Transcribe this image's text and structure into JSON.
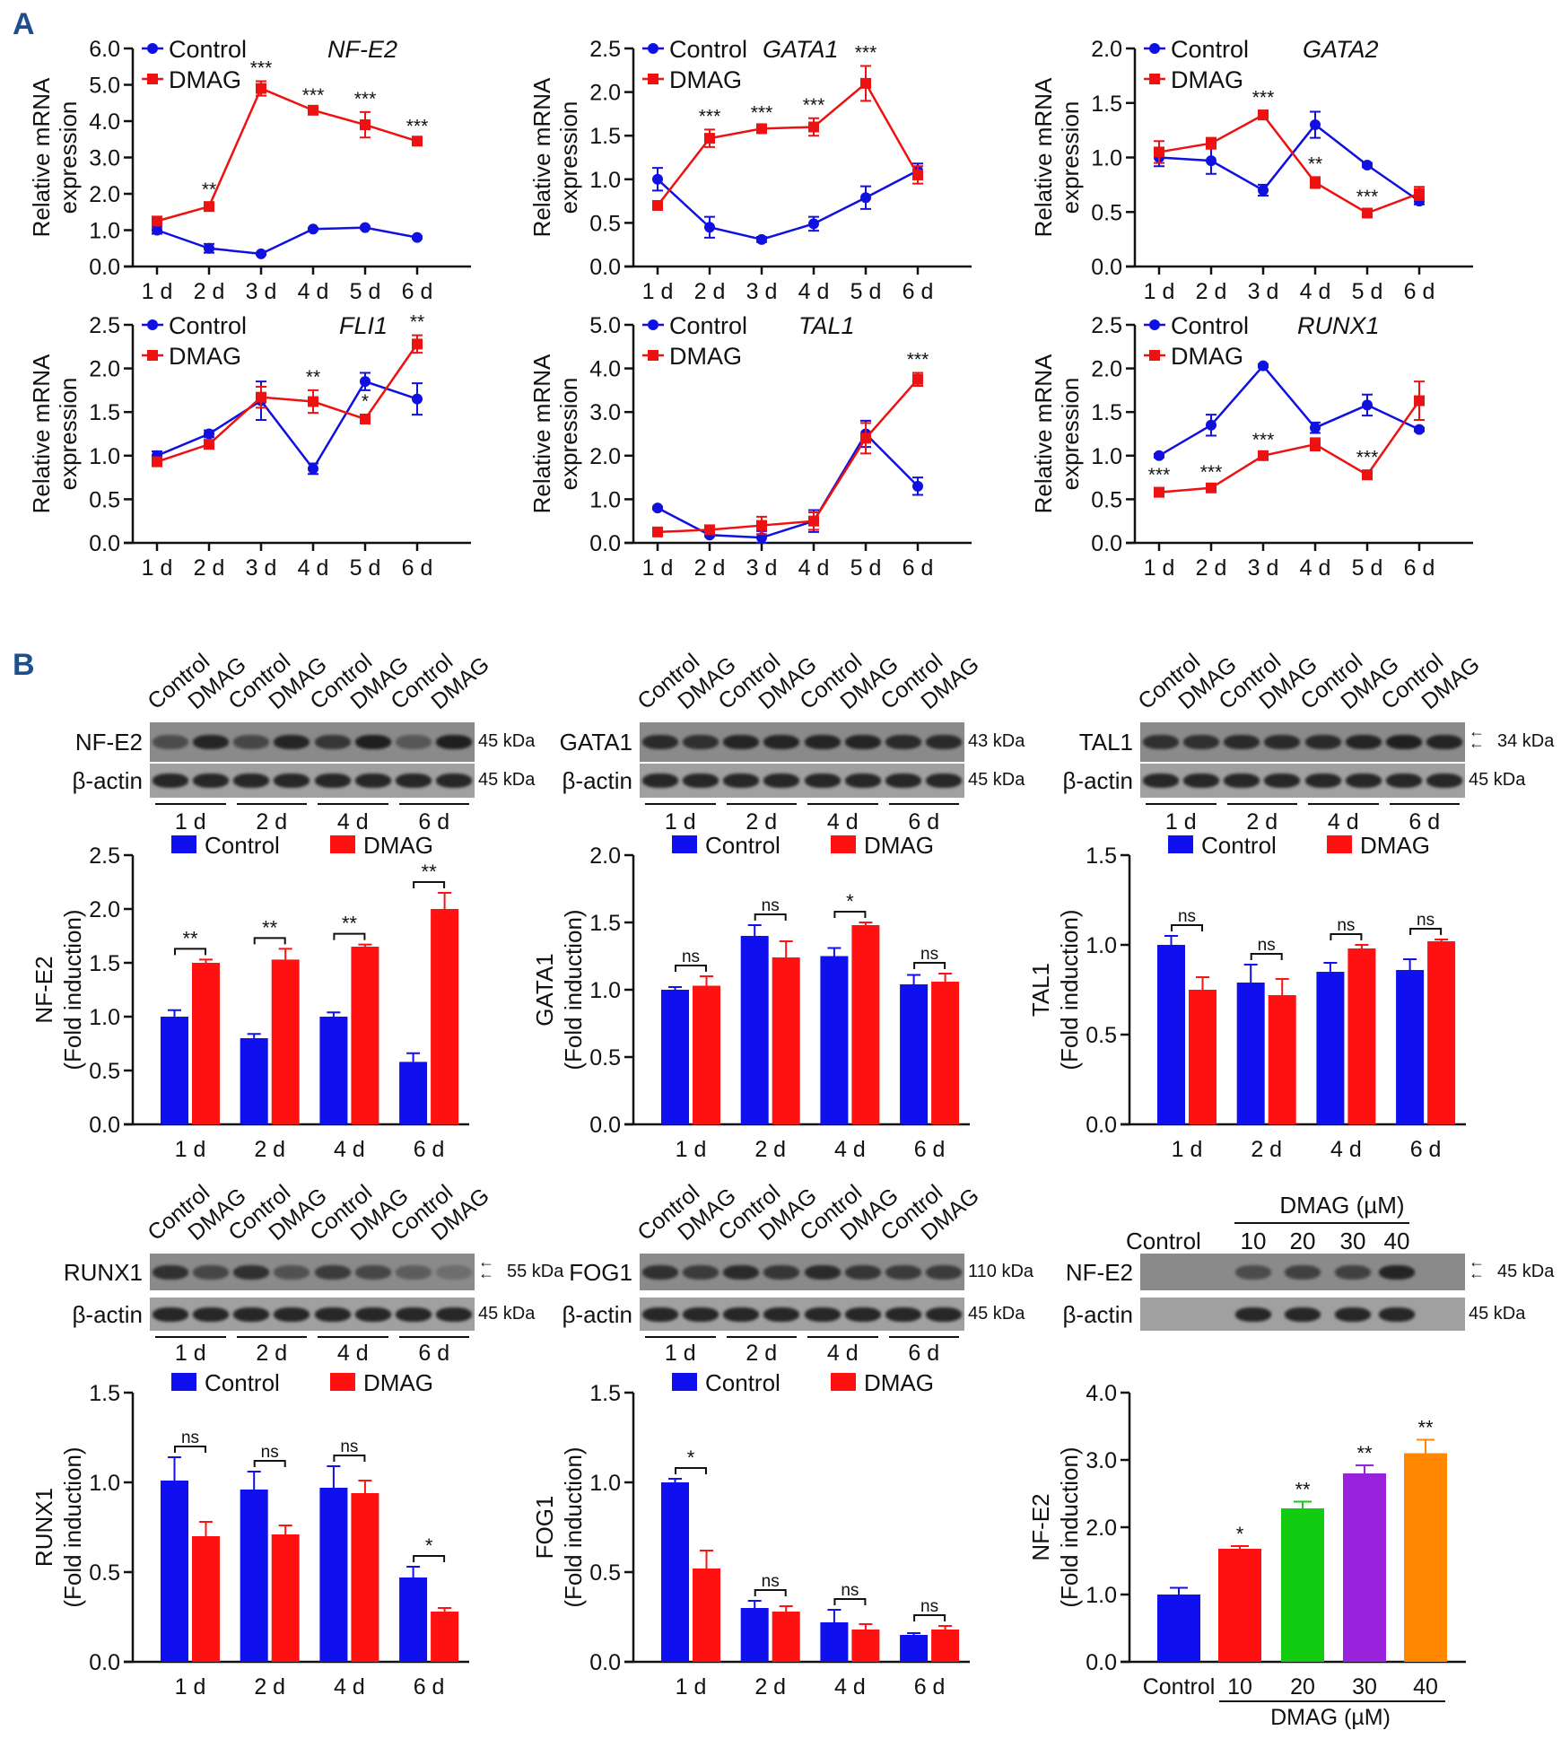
{
  "panel_labels": [
    "A",
    "B"
  ],
  "chart_data": [
    {
      "type": "line",
      "title": "NF-E2",
      "ylabel": [
        "Relative mRNA",
        "expression"
      ],
      "ylim": [
        0,
        6
      ],
      "yticks": [
        "0.0",
        "1.0",
        "2.0",
        "3.0",
        "4.0",
        "5.0",
        "6.0"
      ],
      "categories": [
        "1 d",
        "2 d",
        "3 d",
        "4 d",
        "5 d",
        "6 d"
      ],
      "series": [
        {
          "name": "Control",
          "color": "#1010e0",
          "values": [
            1.0,
            0.5,
            0.35,
            1.03,
            1.07,
            0.8
          ],
          "errors": [
            0.1,
            0.12,
            0.03,
            0.03,
            0.03,
            0.03
          ]
        },
        {
          "name": "DMAG",
          "color": "#ee1111",
          "values": [
            1.25,
            1.65,
            4.9,
            4.3,
            3.9,
            3.45
          ],
          "errors": [
            0.05,
            0.1,
            0.2,
            0.05,
            0.35,
            0.05
          ],
          "significance": [
            "",
            "**",
            "***",
            "***",
            "***",
            "***"
          ]
        }
      ]
    },
    {
      "type": "line",
      "title": "GATA1",
      "ylabel": [
        "Relative mRNA",
        "expression"
      ],
      "ylim": [
        0,
        2.5
      ],
      "yticks": [
        "0.0",
        "0.5",
        "1.0",
        "1.5",
        "2.0",
        "2.5"
      ],
      "categories": [
        "1 d",
        "2 d",
        "3 d",
        "4 d",
        "5 d",
        "6 d"
      ],
      "series": [
        {
          "name": "Control",
          "color": "#1010e0",
          "values": [
            1.0,
            0.45,
            0.31,
            0.49,
            0.79,
            1.1
          ],
          "errors": [
            0.13,
            0.12,
            0.03,
            0.08,
            0.13,
            0.08
          ]
        },
        {
          "name": "DMAG",
          "color": "#ee1111",
          "values": [
            0.7,
            1.47,
            1.58,
            1.6,
            2.1,
            1.05
          ],
          "errors": [
            0.03,
            0.1,
            0.03,
            0.1,
            0.2,
            0.1
          ],
          "significance": [
            "",
            "***",
            "***",
            "***",
            "***",
            ""
          ]
        }
      ]
    },
    {
      "type": "line",
      "title": "GATA2",
      "ylabel": [
        "Relative mRNA",
        "expression"
      ],
      "ylim": [
        0,
        2
      ],
      "yticks": [
        "0.0",
        "0.5",
        "1.0",
        "1.5",
        "2.0"
      ],
      "categories": [
        "1 d",
        "2 d",
        "3 d",
        "4 d",
        "5 d",
        "6 d"
      ],
      "series": [
        {
          "name": "Control",
          "color": "#1010e0",
          "values": [
            1.0,
            0.97,
            0.7,
            1.3,
            0.93,
            0.6
          ],
          "errors": [
            0.08,
            0.12,
            0.05,
            0.12,
            0.02,
            0.03
          ]
        },
        {
          "name": "DMAG",
          "color": "#ee1111",
          "values": [
            1.05,
            1.13,
            1.39,
            0.77,
            0.49,
            0.67
          ],
          "errors": [
            0.1,
            0.05,
            0.04,
            0.05,
            0.03,
            0.06
          ],
          "significance": [
            "",
            "",
            "***",
            "**",
            "***",
            ""
          ]
        }
      ]
    },
    {
      "type": "line",
      "title": "FLI1",
      "ylabel": [
        "Relative mRNA",
        "expression"
      ],
      "ylim": [
        0,
        2.5
      ],
      "yticks": [
        "0.0",
        "0.5",
        "1.0",
        "1.5",
        "2.0",
        "2.5"
      ],
      "categories": [
        "1 d",
        "2 d",
        "3 d",
        "4 d",
        "5 d",
        "6 d"
      ],
      "series": [
        {
          "name": "Control",
          "color": "#1010e0",
          "values": [
            1.0,
            1.25,
            1.63,
            0.85,
            1.85,
            1.65
          ],
          "errors": [
            0.05,
            0.04,
            0.22,
            0.06,
            0.1,
            0.18
          ]
        },
        {
          "name": "DMAG",
          "color": "#ee1111",
          "values": [
            0.93,
            1.13,
            1.67,
            1.62,
            1.42,
            2.28
          ],
          "errors": [
            0.03,
            0.03,
            0.12,
            0.13,
            0.05,
            0.1
          ],
          "significance": [
            "",
            "",
            "",
            "**",
            "*",
            "**"
          ]
        }
      ]
    },
    {
      "type": "line",
      "title": "TAL1",
      "ylabel": [
        "Relative mRNA",
        "expression"
      ],
      "ylim": [
        0,
        5
      ],
      "yticks": [
        "0.0",
        "1.0",
        "2.0",
        "3.0",
        "4.0",
        "5.0"
      ],
      "categories": [
        "1 d",
        "2 d",
        "3 d",
        "4 d",
        "5 d",
        "6 d"
      ],
      "series": [
        {
          "name": "Control",
          "color": "#1010e0",
          "values": [
            0.8,
            0.18,
            0.12,
            0.5,
            2.5,
            1.3
          ],
          "errors": [
            0.03,
            0.03,
            0.15,
            0.25,
            0.3,
            0.2
          ]
        },
        {
          "name": "DMAG",
          "color": "#ee1111",
          "values": [
            0.25,
            0.3,
            0.4,
            0.5,
            2.4,
            3.75
          ],
          "errors": [
            0.03,
            0.05,
            0.2,
            0.2,
            0.35,
            0.15
          ],
          "significance": [
            "",
            "",
            "",
            "",
            "",
            "***"
          ]
        }
      ]
    },
    {
      "type": "line",
      "title": "RUNX1",
      "ylabel": [
        "Relative mRNA",
        "expression"
      ],
      "ylim": [
        0,
        2.5
      ],
      "yticks": [
        "0.0",
        "0.5",
        "1.0",
        "1.5",
        "2.0",
        "2.5"
      ],
      "categories": [
        "1 d",
        "2 d",
        "3 d",
        "4 d",
        "5 d",
        "6 d"
      ],
      "series": [
        {
          "name": "Control",
          "color": "#1010e0",
          "values": [
            1.0,
            1.35,
            2.03,
            1.32,
            1.58,
            1.3
          ],
          "errors": [
            0.02,
            0.12,
            0.02,
            0.06,
            0.12,
            0.02
          ]
        },
        {
          "name": "DMAG",
          "color": "#ee1111",
          "values": [
            0.58,
            0.63,
            1.0,
            1.13,
            0.78,
            1.63
          ],
          "errors": [
            0.05,
            0.03,
            0.03,
            0.07,
            0.05,
            0.22
          ],
          "significance": [
            "***",
            "***",
            "***",
            "",
            "***",
            ""
          ]
        }
      ]
    },
    {
      "type": "bar",
      "ylabel": [
        "NF-E2",
        "(Fold induction)"
      ],
      "ylim": [
        0,
        2.5
      ],
      "yticks": [
        "0.0",
        "0.5",
        "1.0",
        "1.5",
        "2.0",
        "2.5"
      ],
      "categories": [
        "1 d",
        "2 d",
        "4 d",
        "6 d"
      ],
      "series": [
        {
          "name": "Control",
          "color": "#1010ee",
          "values": [
            1.0,
            0.8,
            1.0,
            0.58
          ],
          "errors": [
            0.06,
            0.04,
            0.04,
            0.08
          ]
        },
        {
          "name": "DMAG",
          "color": "#ff1111",
          "values": [
            1.5,
            1.53,
            1.65,
            2.0
          ],
          "errors": [
            0.03,
            0.1,
            0.02,
            0.15
          ]
        }
      ],
      "significance": [
        "**",
        "**",
        "**",
        "**"
      ]
    },
    {
      "type": "bar",
      "ylabel": [
        "GATA1",
        "(Fold induction)"
      ],
      "ylim": [
        0,
        2
      ],
      "yticks": [
        "0.0",
        "0.5",
        "1.0",
        "1.5",
        "2.0"
      ],
      "categories": [
        "1 d",
        "2 d",
        "4 d",
        "6 d"
      ],
      "series": [
        {
          "name": "Control",
          "color": "#1010ee",
          "values": [
            1.0,
            1.4,
            1.25,
            1.04
          ],
          "errors": [
            0.02,
            0.08,
            0.06,
            0.07
          ]
        },
        {
          "name": "DMAG",
          "color": "#ff1111",
          "values": [
            1.03,
            1.24,
            1.48,
            1.06
          ],
          "errors": [
            0.07,
            0.12,
            0.02,
            0.06
          ]
        }
      ],
      "significance": [
        "ns",
        "ns",
        "*",
        "ns"
      ]
    },
    {
      "type": "bar",
      "ylabel": [
        "TAL1",
        "(Fold induction)"
      ],
      "ylim": [
        0,
        1.5
      ],
      "yticks": [
        "0.0",
        "0.5",
        "1.0",
        "1.5"
      ],
      "categories": [
        "1 d",
        "2 d",
        "4 d",
        "6 d"
      ],
      "series": [
        {
          "name": "Control",
          "color": "#1010ee",
          "values": [
            1.0,
            0.79,
            0.85,
            0.86
          ],
          "errors": [
            0.05,
            0.1,
            0.05,
            0.06
          ]
        },
        {
          "name": "DMAG",
          "color": "#ff1111",
          "values": [
            0.75,
            0.72,
            0.98,
            1.02
          ],
          "errors": [
            0.07,
            0.09,
            0.02,
            0.01
          ]
        }
      ],
      "significance": [
        "ns",
        "ns",
        "ns",
        "ns"
      ]
    },
    {
      "type": "bar",
      "ylabel": [
        "RUNX1",
        "(Fold induction)"
      ],
      "ylim": [
        0,
        1.5
      ],
      "yticks": [
        "0.0",
        "0.5",
        "1.0",
        "1.5"
      ],
      "categories": [
        "1 d",
        "2 d",
        "4 d",
        "6 d"
      ],
      "series": [
        {
          "name": "Control",
          "color": "#1010ee",
          "values": [
            1.01,
            0.96,
            0.97,
            0.47
          ],
          "errors": [
            0.13,
            0.1,
            0.12,
            0.06
          ]
        },
        {
          "name": "DMAG",
          "color": "#ff1111",
          "values": [
            0.7,
            0.71,
            0.94,
            0.28
          ],
          "errors": [
            0.08,
            0.05,
            0.07,
            0.02
          ]
        }
      ],
      "significance": [
        "ns",
        "ns",
        "ns",
        "*"
      ]
    },
    {
      "type": "bar",
      "ylabel": [
        "FOG1",
        "(Fold induction)"
      ],
      "ylim": [
        0,
        1.5
      ],
      "yticks": [
        "0.0",
        "0.5",
        "1.0",
        "1.5"
      ],
      "categories": [
        "1 d",
        "2 d",
        "4 d",
        "6 d"
      ],
      "series": [
        {
          "name": "Control",
          "color": "#1010ee",
          "values": [
            1.0,
            0.3,
            0.22,
            0.15
          ],
          "errors": [
            0.02,
            0.04,
            0.07,
            0.01
          ]
        },
        {
          "name": "DMAG",
          "color": "#ff1111",
          "values": [
            0.52,
            0.28,
            0.18,
            0.18
          ],
          "errors": [
            0.1,
            0.03,
            0.03,
            0.02
          ]
        }
      ],
      "significance": [
        "*",
        "ns",
        "ns",
        "ns"
      ]
    },
    {
      "type": "bar",
      "ylabel": [
        "NF-E2",
        "(Fold induction)"
      ],
      "xlabel": "DMAG (µM)",
      "ylim": [
        0,
        4
      ],
      "yticks": [
        "0.0",
        "1.0",
        "2.0",
        "3.0",
        "4.0"
      ],
      "categories": [
        "Control",
        "10",
        "20",
        "30",
        "40"
      ],
      "values": [
        1.0,
        1.68,
        2.28,
        2.8,
        3.1
      ],
      "errors": [
        0.1,
        0.04,
        0.1,
        0.12,
        0.2
      ],
      "colors": [
        "#1010ee",
        "#ff1111",
        "#11cc11",
        "#9922dd",
        "#ff8800"
      ],
      "significance": [
        "",
        "*",
        "**",
        "**",
        "**"
      ]
    }
  ],
  "blots": [
    {
      "protein": "NF-E2",
      "protein_kda": "45 kDa",
      "loading": "β-actin",
      "loading_kda": "45 kDa",
      "lanes": [
        "Control",
        "DMAG",
        "Control",
        "DMAG",
        "Control",
        "DMAG",
        "Control",
        "DMAG"
      ],
      "days": [
        "1 d",
        "2 d",
        "4 d",
        "6 d"
      ]
    },
    {
      "protein": "GATA1",
      "protein_kda": "43 kDa",
      "loading": "β-actin",
      "loading_kda": "45 kDa",
      "lanes": [
        "Control",
        "DMAG",
        "Control",
        "DMAG",
        "Control",
        "DMAG",
        "Control",
        "DMAG"
      ],
      "days": [
        "1 d",
        "2 d",
        "4 d",
        "6 d"
      ]
    },
    {
      "protein": "TAL1",
      "protein_kda": "34 kDa",
      "loading": "β-actin",
      "loading_kda": "45 kDa",
      "lanes": [
        "Control",
        "DMAG",
        "Control",
        "DMAG",
        "Control",
        "DMAG",
        "Control",
        "DMAG"
      ],
      "days": [
        "1 d",
        "2 d",
        "4 d",
        "6 d"
      ],
      "arrows": true
    },
    {
      "protein": "RUNX1",
      "protein_kda": "55 kDa",
      "loading": "β-actin",
      "loading_kda": "45 kDa",
      "lanes": [
        "Control",
        "DMAG",
        "Control",
        "DMAG",
        "Control",
        "DMAG",
        "Control",
        "DMAG"
      ],
      "days": [
        "1 d",
        "2 d",
        "4 d",
        "6 d"
      ],
      "arrows": true
    },
    {
      "protein": "FOG1",
      "protein_kda": "110 kDa",
      "loading": "β-actin",
      "loading_kda": "45 kDa",
      "lanes": [
        "Control",
        "DMAG",
        "Control",
        "DMAG",
        "Control",
        "DMAG",
        "Control",
        "DMAG"
      ],
      "days": [
        "1 d",
        "2 d",
        "4 d",
        "6 d"
      ]
    },
    {
      "protein": "NF-E2",
      "protein_kda": "45 kDa",
      "loading": "β-actin",
      "loading_kda": "45 kDa",
      "header": "DMAG (µM)",
      "lanes": [
        "Control",
        "10",
        "20",
        "30",
        "40"
      ],
      "arrows": true
    }
  ]
}
